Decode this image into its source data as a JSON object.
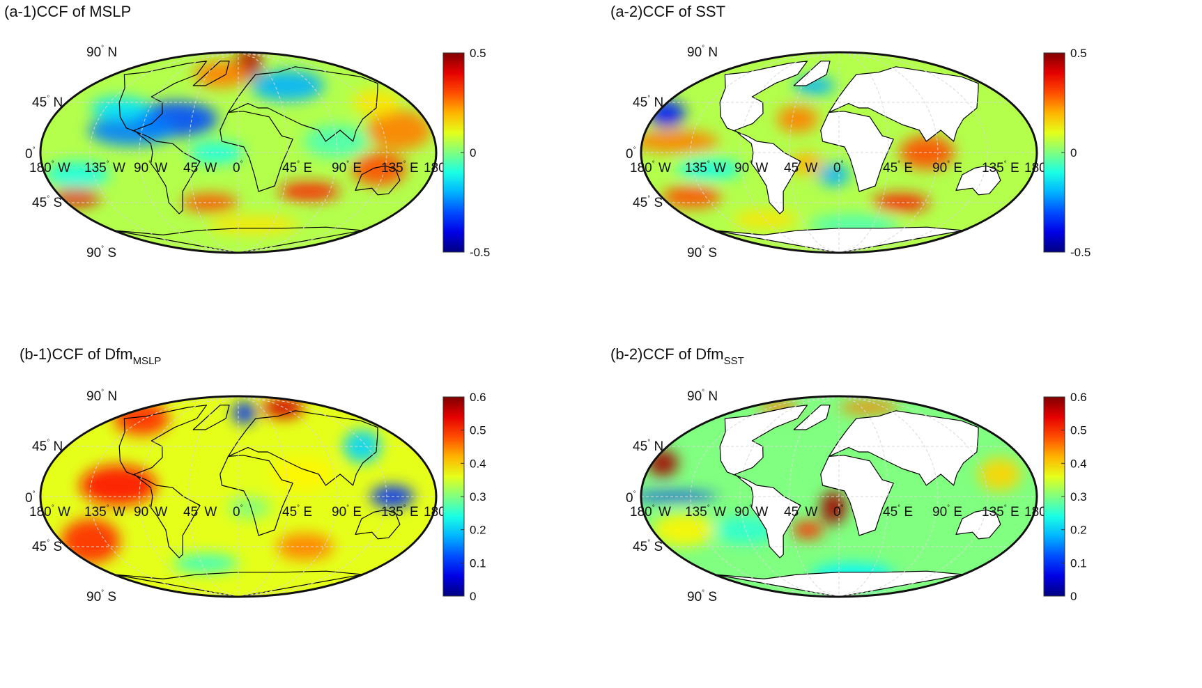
{
  "panels": [
    {
      "id": "a1",
      "title": "(a-1)CCF of MSLP",
      "title_sub": "",
      "variable": "MSLP",
      "colorbar": {
        "min": -0.5,
        "max": 0.5,
        "ticks": [
          "0.5",
          "0",
          "-0.5"
        ],
        "colormap": "jet"
      },
      "land_masked": false,
      "dominant_value": 0.05,
      "blobs": [
        [
          20,
          80,
          0.45,
          28,
          14
        ],
        [
          -25,
          70,
          0.25,
          40,
          12
        ],
        [
          -60,
          30,
          -0.3,
          40,
          16
        ],
        [
          -100,
          20,
          -0.25,
          40,
          14
        ],
        [
          -120,
          40,
          -0.15,
          30,
          10
        ],
        [
          60,
          60,
          -0.2,
          45,
          14
        ],
        [
          150,
          20,
          0.25,
          30,
          18
        ],
        [
          145,
          45,
          0.15,
          25,
          12
        ],
        [
          130,
          -15,
          0.3,
          25,
          15
        ],
        [
          70,
          -35,
          0.35,
          30,
          8
        ],
        [
          -165,
          -40,
          0.4,
          25,
          8
        ],
        [
          -30,
          -45,
          0.3,
          30,
          8
        ],
        [
          -150,
          -20,
          -0.1,
          30,
          12
        ],
        [
          20,
          -65,
          0.15,
          60,
          8
        ],
        [
          90,
          10,
          -0.05,
          30,
          15
        ],
        [
          -20,
          0,
          -0.1,
          25,
          10
        ]
      ]
    },
    {
      "id": "a2",
      "title": "(a-2)CCF of SST",
      "title_sub": "",
      "variable": "SST",
      "colorbar": {
        "min": -0.5,
        "max": 0.5,
        "ticks": [
          "0.5",
          "0",
          "-0.5"
        ],
        "colormap": "jet"
      },
      "land_masked": true,
      "dominant_value": 0.05,
      "blobs": [
        [
          -170,
          35,
          -0.35,
          18,
          12
        ],
        [
          -150,
          10,
          0.25,
          40,
          10
        ],
        [
          -120,
          -15,
          -0.1,
          30,
          10
        ],
        [
          -40,
          30,
          0.25,
          20,
          12
        ],
        [
          -30,
          60,
          -0.2,
          25,
          8
        ],
        [
          80,
          0,
          0.3,
          25,
          15
        ],
        [
          65,
          -45,
          0.35,
          30,
          8
        ],
        [
          -150,
          -40,
          0.3,
          30,
          10
        ],
        [
          -5,
          -20,
          -0.2,
          15,
          10
        ],
        [
          -30,
          -10,
          0.2,
          15,
          10
        ],
        [
          20,
          -65,
          -0.05,
          60,
          10
        ],
        [
          -90,
          -60,
          0.15,
          40,
          8
        ]
      ]
    },
    {
      "id": "b1",
      "title": "(b-1)CCF of Dfm",
      "title_sub": "MSLP",
      "variable": "DfmMSLP",
      "colorbar": {
        "min": 0,
        "max": 0.6,
        "ticks": [
          "0.6",
          "0.5",
          "0.4",
          "0.3",
          "0.2",
          "0.1",
          "0"
        ],
        "colormap": "jet"
      },
      "land_masked": false,
      "dominant_value": 0.36,
      "blobs": [
        [
          10,
          75,
          0.1,
          20,
          10
        ],
        [
          -140,
          70,
          0.5,
          40,
          15
        ],
        [
          90,
          80,
          0.55,
          40,
          10
        ],
        [
          -110,
          10,
          0.52,
          35,
          18
        ],
        [
          -150,
          -40,
          0.5,
          30,
          20
        ],
        [
          140,
          0,
          0.1,
          20,
          10
        ],
        [
          130,
          45,
          0.2,
          20,
          15
        ],
        [
          70,
          -45,
          0.45,
          30,
          12
        ],
        [
          -40,
          -60,
          0.25,
          40,
          8
        ],
        [
          10,
          -10,
          0.3,
          20,
          10
        ],
        [
          60,
          20,
          0.38,
          30,
          15
        ]
      ]
    },
    {
      "id": "b2",
      "title": "(b-2)CCF of Dfm",
      "title_sub": "SST",
      "variable": "DfmSST",
      "colorbar": {
        "min": 0,
        "max": 0.6,
        "ticks": [
          "0.6",
          "0.5",
          "0.4",
          "0.3",
          "0.2",
          "0.1",
          "0"
        ],
        "colormap": "jet"
      },
      "land_masked": true,
      "dominant_value": 0.3,
      "blobs": [
        [
          -170,
          30,
          0.58,
          15,
          12
        ],
        [
          -150,
          0,
          0.1,
          40,
          4
        ],
        [
          -5,
          -10,
          0.58,
          12,
          15
        ],
        [
          -30,
          -30,
          0.5,
          15,
          8
        ],
        [
          60,
          80,
          0.45,
          60,
          6
        ],
        [
          -120,
          80,
          0.45,
          40,
          6
        ],
        [
          20,
          -70,
          0.22,
          60,
          10
        ],
        [
          -90,
          -30,
          0.25,
          30,
          12
        ],
        [
          150,
          20,
          0.4,
          20,
          15
        ],
        [
          -150,
          -30,
          0.38,
          30,
          15
        ]
      ]
    }
  ],
  "graticule": {
    "lat_labels": [
      {
        "deg": "90",
        "hemi": "N",
        "lat": 90
      },
      {
        "deg": "45",
        "hemi": "N",
        "lat": 45
      },
      {
        "deg": "0",
        "hemi": "",
        "lat": 0
      },
      {
        "deg": "45",
        "hemi": "S",
        "lat": -45
      },
      {
        "deg": "90",
        "hemi": "S",
        "lat": -90
      }
    ],
    "lon_labels": [
      {
        "deg": "180",
        "hemi": "W",
        "lon": -180
      },
      {
        "deg": "135",
        "hemi": "W",
        "lon": -135
      },
      {
        "deg": "90",
        "hemi": "W",
        "lon": -90
      },
      {
        "deg": "45",
        "hemi": "W",
        "lon": -45
      },
      {
        "deg": "0",
        "hemi": "",
        "lon": 0
      },
      {
        "deg": "45",
        "hemi": "E",
        "lon": 45
      },
      {
        "deg": "90",
        "hemi": "E",
        "lon": 90
      },
      {
        "deg": "135",
        "hemi": "E",
        "lon": 135
      },
      {
        "deg": "180",
        "hemi": "",
        "lon": 180
      }
    ]
  }
}
